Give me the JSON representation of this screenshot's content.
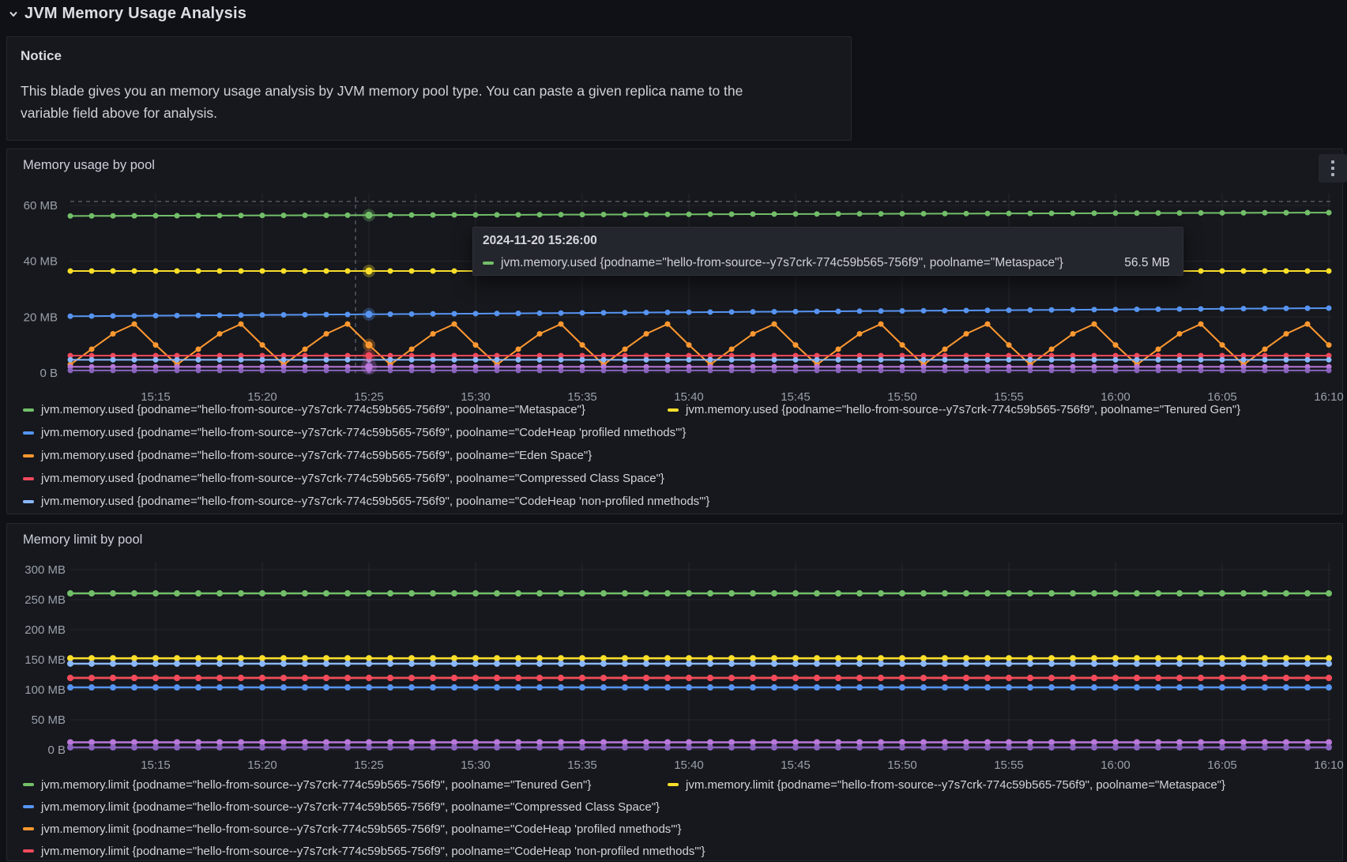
{
  "page": {
    "title": "JVM Memory Usage Analysis",
    "collapse_icon": "chevron-down-icon"
  },
  "notice": {
    "title": "Notice",
    "body": "This blade gives you an memory usage analysis by JVM memory pool type. You can paste a given replica name to the variable field above for analysis."
  },
  "tooltip": {
    "time": "2024-11-20 15:26:00",
    "series": "jvm.memory.used {podname=\"hello-from-source--y7s7crk-774c59b565-756f9\", poolname=\"Metaspace\"}",
    "value": "56.5 MB",
    "marker_color": "#73bf69"
  },
  "colors": {
    "green": "#73bf69",
    "yellow": "#fade2a",
    "blue": "#5794f2",
    "orange": "#ff9830",
    "red": "#f2495c",
    "light_blue": "#8ab8ff",
    "purple": "#b877d9",
    "dark_purple": "#8a63be",
    "panel_bg": "#16181d",
    "page_bg": "#101116",
    "border": "#26282e"
  },
  "chart_data": [
    {
      "type": "line",
      "title": "Memory usage by pool",
      "unit": "MB",
      "x_start": "15:11",
      "x_end": "16:10",
      "interval_min": 1,
      "x_ticks": [
        "15:15",
        "15:20",
        "15:25",
        "15:30",
        "15:35",
        "15:40",
        "15:45",
        "15:50",
        "15:55",
        "16:00",
        "16:05",
        "16:10"
      ],
      "y_ticks": [
        "0 B",
        "20 MB",
        "40 MB",
        "60 MB"
      ],
      "ylim": [
        0,
        64
      ],
      "grid": true,
      "legend_position": "bottom",
      "cursor": {
        "time": "15:26",
        "hovered_series": "Metaspace",
        "hovered_value_mb": 56.5
      },
      "series": [
        {
          "name": "jvm.memory.used {podname=\"hello-from-source--y7s7crk-774c59b565-756f9\", poolname=\"Metaspace\"}",
          "color": "#73bf69",
          "kind": "trend",
          "start": 56.2,
          "end": 57.4
        },
        {
          "name": "jvm.memory.used {podname=\"hello-from-source--y7s7crk-774c59b565-756f9\", poolname=\"Tenured Gen\"}",
          "color": "#fade2a",
          "kind": "flat",
          "value": 36.5
        },
        {
          "name": "jvm.memory.used {podname=\"hello-from-source--y7s7crk-774c59b565-756f9\", poolname=\"CodeHeap 'profiled nmethods'\"}",
          "color": "#5794f2",
          "kind": "trend",
          "start": 20.3,
          "end": 23.2
        },
        {
          "name": "jvm.memory.used {podname=\"hello-from-source--y7s7crk-774c59b565-756f9\", poolname=\"Eden Space\"}",
          "color": "#ff9830",
          "kind": "pattern",
          "pattern": [
            3,
            8.5,
            14,
            17.5,
            10
          ]
        },
        {
          "name": "jvm.memory.used {podname=\"hello-from-source--y7s7crk-774c59b565-756f9\", poolname=\"Compressed Class Space\"}",
          "color": "#f2495c",
          "kind": "flat",
          "value": 6.2
        },
        {
          "name": "jvm.memory.used {podname=\"hello-from-source--y7s7crk-774c59b565-756f9\", poolname=\"CodeHeap 'non-profiled nmethods'\"}",
          "color": "#8ab8ff",
          "kind": "flat",
          "value": 4.7
        },
        {
          "name": "unlabeled-purple-series",
          "color": "#b877d9",
          "kind": "flat",
          "value": 2.2
        },
        {
          "name": "unlabeled-dark-purple-series",
          "color": "#8a63be",
          "kind": "flat",
          "value": 0.9
        }
      ],
      "legend": [
        {
          "label": "jvm.memory.used {podname=\"hello-from-source--y7s7crk-774c59b565-756f9\", poolname=\"Metaspace\"}",
          "color": "#73bf69"
        },
        {
          "label": "jvm.memory.used {podname=\"hello-from-source--y7s7crk-774c59b565-756f9\", poolname=\"Tenured Gen\"}",
          "color": "#fade2a"
        },
        {
          "label": "jvm.memory.used {podname=\"hello-from-source--y7s7crk-774c59b565-756f9\", poolname=\"CodeHeap 'profiled nmethods'\"}",
          "color": "#5794f2"
        },
        {
          "label": "jvm.memory.used {podname=\"hello-from-source--y7s7crk-774c59b565-756f9\", poolname=\"Eden Space\"}",
          "color": "#ff9830"
        },
        {
          "label": "jvm.memory.used {podname=\"hello-from-source--y7s7crk-774c59b565-756f9\", poolname=\"Compressed Class Space\"}",
          "color": "#f2495c"
        },
        {
          "label": "jvm.memory.used {podname=\"hello-from-source--y7s7crk-774c59b565-756f9\", poolname=\"CodeHeap 'non-profiled nmethods'\"}",
          "color": "#8ab8ff"
        }
      ]
    },
    {
      "type": "line",
      "title": "Memory limit by pool",
      "unit": "MB",
      "x_start": "15:11",
      "x_end": "16:10",
      "interval_min": 1,
      "x_ticks": [
        "15:15",
        "15:20",
        "15:25",
        "15:30",
        "15:35",
        "15:40",
        "15:45",
        "15:50",
        "15:55",
        "16:00",
        "16:05",
        "16:10"
      ],
      "y_ticks": [
        "0 B",
        "50 MB",
        "100 MB",
        "150 MB",
        "200 MB",
        "250 MB",
        "300 MB"
      ],
      "ylim": [
        0,
        310
      ],
      "grid": true,
      "legend_position": "bottom",
      "series": [
        {
          "name": "jvm.memory.limit {podname=\"hello-from-source--y7s7crk-774c59b565-756f9\", poolname=\"Tenured Gen\"}",
          "color": "#73bf69",
          "kind": "flat",
          "value": 260.5
        },
        {
          "name": "jvm.memory.limit {podname=\"hello-from-source--y7s7crk-774c59b565-756f9\", poolname=\"Metaspace\"}",
          "color": "#fade2a",
          "kind": "flat",
          "value": 152.5
        },
        {
          "name": "unlabeled-light-blue-series",
          "color": "#8ab8ff",
          "kind": "flat",
          "value": 143.5
        },
        {
          "name": "jvm.memory.limit {podname=\"hello-from-source--y7s7crk-774c59b565-756f9\", poolname=\"CodeHeap 'profiled nmethods'\"}",
          "color": "#ff9830",
          "kind": "flat",
          "value": 119.7
        },
        {
          "name": "jvm.memory.limit {podname=\"hello-from-source--y7s7crk-774c59b565-756f9\", poolname=\"CodeHeap 'non-profiled nmethods'\"}",
          "color": "#f2495c",
          "kind": "flat",
          "value": 119.7
        },
        {
          "name": "jvm.memory.limit {podname=\"hello-from-source--y7s7crk-774c59b565-756f9\", poolname=\"Compressed Class Space\"}",
          "color": "#5794f2",
          "kind": "flat",
          "value": 103.9
        },
        {
          "name": "unlabeled-purple-series",
          "color": "#b877d9",
          "kind": "flat",
          "value": 12.5
        },
        {
          "name": "unlabeled-dark-purple-series",
          "color": "#8a63be",
          "kind": "flat",
          "value": 4
        }
      ],
      "legend": [
        {
          "label": "jvm.memory.limit {podname=\"hello-from-source--y7s7crk-774c59b565-756f9\", poolname=\"Tenured Gen\"}",
          "color": "#73bf69"
        },
        {
          "label": "jvm.memory.limit {podname=\"hello-from-source--y7s7crk-774c59b565-756f9\", poolname=\"Metaspace\"}",
          "color": "#fade2a"
        },
        {
          "label": "jvm.memory.limit {podname=\"hello-from-source--y7s7crk-774c59b565-756f9\", poolname=\"Compressed Class Space\"}",
          "color": "#5794f2"
        },
        {
          "label": "jvm.memory.limit {podname=\"hello-from-source--y7s7crk-774c59b565-756f9\", poolname=\"CodeHeap 'profiled nmethods'\"}",
          "color": "#ff9830"
        },
        {
          "label": "jvm.memory.limit {podname=\"hello-from-source--y7s7crk-774c59b565-756f9\", poolname=\"CodeHeap 'non-profiled nmethods'\"}",
          "color": "#f2495c"
        }
      ]
    }
  ]
}
